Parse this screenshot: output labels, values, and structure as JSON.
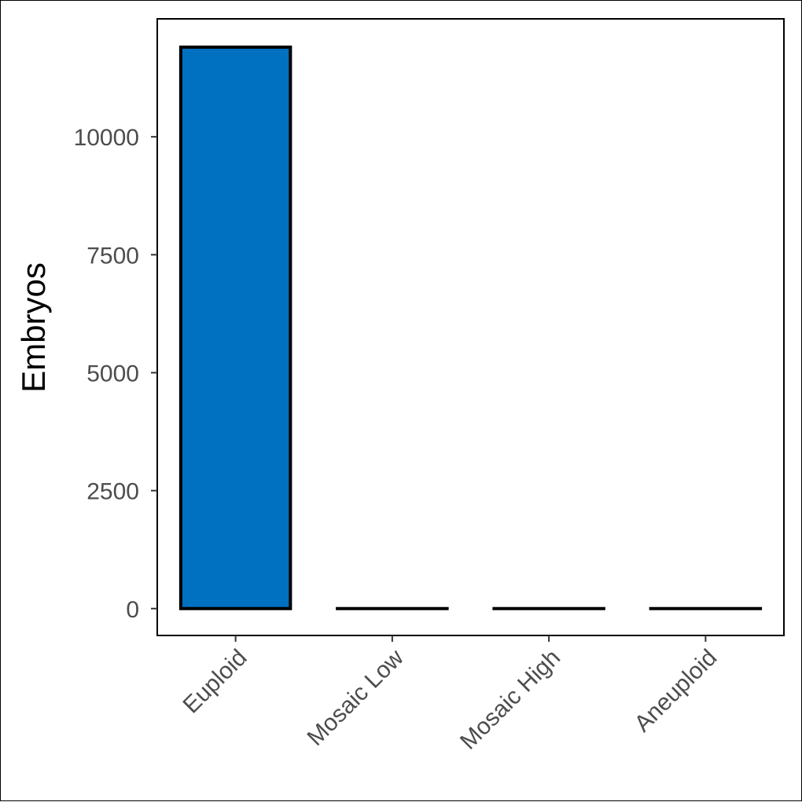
{
  "chart_data": {
    "type": "bar",
    "categories": [
      "Euploid",
      "Mosaic Low",
      "Mosaic High",
      "Aneuploid"
    ],
    "values": [
      11900,
      0,
      0,
      0
    ],
    "title": "",
    "xlabel": "",
    "ylabel": "Embryos",
    "ylim": [
      -570,
      12500
    ],
    "yticks": [
      0,
      2500,
      5000,
      7500,
      10000
    ],
    "ytick_labels": [
      "0",
      "2500",
      "5000",
      "7500",
      "10000"
    ],
    "grid": false,
    "legend": "none",
    "colors": {
      "bar_fill": "#0070c0",
      "bar_stroke": "#000000",
      "axis_text": "#4d4d4d"
    }
  }
}
